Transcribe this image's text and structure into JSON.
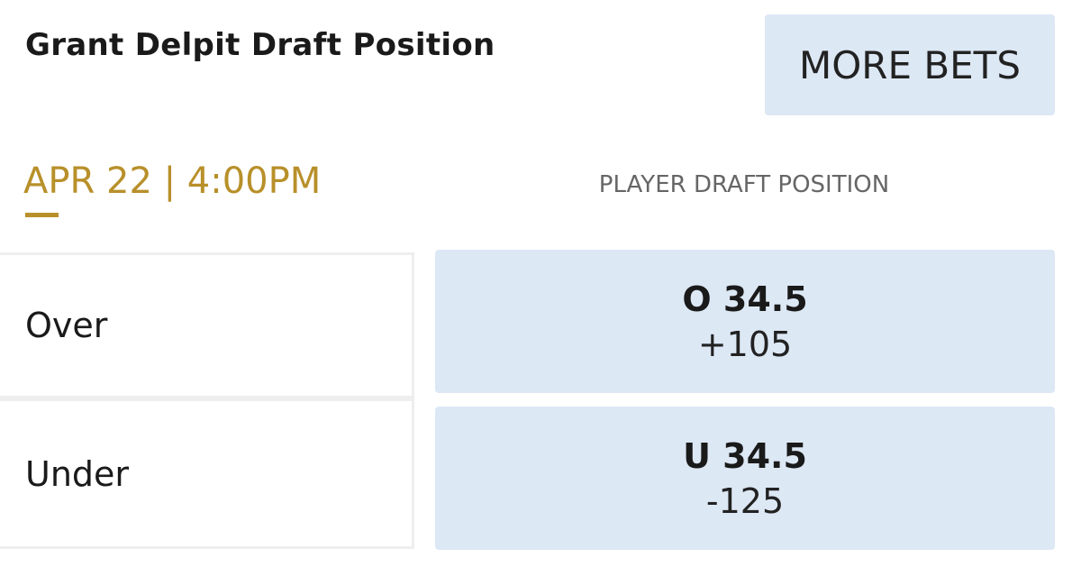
{
  "header": {
    "title": "Grant Delpit Draft Position",
    "more_bets": "MORE BETS"
  },
  "event": {
    "date_time": "APR 22 | 4:00PM",
    "market": "PLAYER DRAFT POSITION"
  },
  "rows": [
    {
      "label": "Over",
      "line": "O 34.5",
      "odds": "+105"
    },
    {
      "label": "Under",
      "line": "U 34.5",
      "odds": "-125"
    }
  ]
}
